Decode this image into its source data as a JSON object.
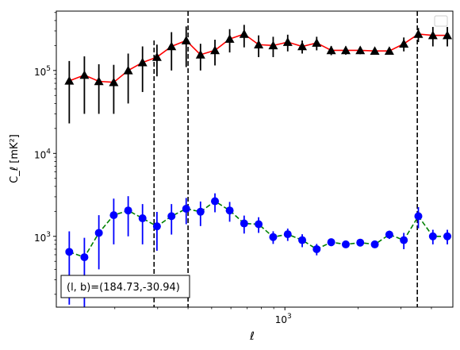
{
  "chart_data": {
    "type": "scatter",
    "title": "",
    "xlabel": "ℓ",
    "ylabel": "C_ℓ  [mK²]",
    "xscale": "log",
    "yscale": "log",
    "xlim": [
      115,
      4900
    ],
    "ylim": [
      140,
      520000
    ],
    "grid": false,
    "legend": "upper right (empty box)",
    "x_ticks": [
      {
        "value": 1000,
        "base": "10",
        "exp": "3"
      }
    ],
    "y_ticks": [
      {
        "value": 1000,
        "base": "10",
        "exp": "3"
      },
      {
        "value": 10000,
        "base": "10",
        "exp": "4"
      },
      {
        "value": 100000,
        "base": "10",
        "exp": "5"
      }
    ],
    "annotation": "(l, b)=(184.73,-30.94)",
    "vlines": [
      {
        "x": 290,
        "ymin": 140,
        "ymax": 230000
      },
      {
        "x": 400,
        "ymin": 140,
        "ymax": 520000
      },
      {
        "x": 3500,
        "ymin": 140,
        "ymax": 520000
      }
    ],
    "series": [
      {
        "marker": "triangle",
        "marker_color": "#000000",
        "line_color": "#ff0000",
        "line_style": "solid",
        "x": [
          130,
          150,
          172,
          198,
          227,
          260,
          298,
          342,
          393,
          450,
          516,
          593,
          680,
          780,
          895,
          1027,
          1178,
          1351,
          1550,
          1779,
          2040,
          2341,
          2686,
          3081,
          3535,
          4056,
          4650
        ],
        "y": [
          75000,
          88000,
          74000,
          72000,
          100000,
          125000,
          145000,
          195000,
          230000,
          155000,
          175000,
          240000,
          275000,
          205000,
          200000,
          220000,
          195000,
          215000,
          175000,
          175000,
          175000,
          172000,
          172000,
          210000,
          275000,
          265000,
          265000
        ],
        "err_low": [
          52000,
          58000,
          44000,
          42000,
          60000,
          70000,
          60000,
          95000,
          120000,
          55000,
          60000,
          75000,
          85000,
          60000,
          55000,
          50000,
          35000,
          40000,
          22000,
          20000,
          18000,
          16000,
          14000,
          40000,
          55000,
          70000,
          70000
        ],
        "err_high": [
          55000,
          60000,
          45000,
          45000,
          60000,
          70000,
          60000,
          95000,
          110000,
          55000,
          60000,
          75000,
          80000,
          60000,
          55000,
          50000,
          35000,
          40000,
          22000,
          20000,
          18000,
          16000,
          14000,
          40000,
          50000,
          70000,
          70000
        ]
      },
      {
        "marker": "circle",
        "marker_color": "#0000ff",
        "line_color": "#008000",
        "line_style": "dashed",
        "x": [
          130,
          150,
          172,
          198,
          227,
          260,
          298,
          342,
          393,
          450,
          516,
          593,
          680,
          780,
          895,
          1027,
          1178,
          1351,
          1550,
          1779,
          2040,
          2341,
          2686,
          3081,
          3535,
          4056,
          4650
        ],
        "y": [
          650,
          560,
          1100,
          1800,
          2050,
          1650,
          1320,
          1750,
          2150,
          1980,
          2650,
          2050,
          1430,
          1400,
          980,
          1060,
          900,
          700,
          850,
          800,
          840,
          800,
          1050,
          900,
          1750,
          1000,
          1000
        ],
        "err_low": [
          500,
          420,
          700,
          1000,
          1050,
          850,
          650,
          700,
          750,
          650,
          700,
          550,
          350,
          300,
          170,
          180,
          160,
          110,
          90,
          70,
          70,
          70,
          120,
          200,
          500,
          200,
          200
        ],
        "err_high": [
          500,
          400,
          700,
          1050,
          1000,
          800,
          650,
          700,
          750,
          650,
          650,
          550,
          350,
          300,
          170,
          180,
          160,
          110,
          90,
          70,
          70,
          70,
          120,
          200,
          500,
          200,
          200
        ]
      }
    ]
  }
}
